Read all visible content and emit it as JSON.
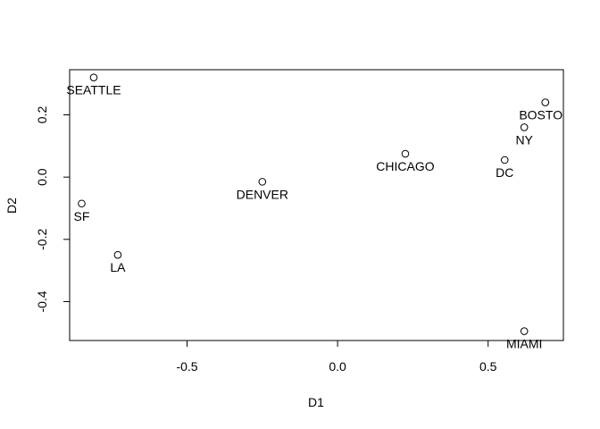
{
  "chart_data": {
    "type": "scatter",
    "title": "",
    "xlabel": "D1",
    "ylabel": "D2",
    "xlim": [
      -0.89,
      0.75
    ],
    "ylim": [
      -0.525,
      0.345
    ],
    "x_ticks": [
      -0.5,
      0.0,
      0.5
    ],
    "x_tick_labels": [
      "-0.5",
      "0.0",
      "0.5"
    ],
    "y_ticks": [
      -0.4,
      -0.2,
      0.0,
      0.2
    ],
    "y_tick_labels": [
      "-0.4",
      "-0.2",
      "0.0",
      "0.2"
    ],
    "grid": false,
    "points": [
      {
        "label": "SEATTLE",
        "x": -0.81,
        "y": 0.32
      },
      {
        "label": "SF",
        "x": -0.85,
        "y": -0.085
      },
      {
        "label": "LA",
        "x": -0.73,
        "y": -0.25
      },
      {
        "label": "DENVER",
        "x": -0.25,
        "y": -0.015
      },
      {
        "label": "CHICAGO",
        "x": 0.225,
        "y": 0.075
      },
      {
        "label": "DC",
        "x": 0.555,
        "y": 0.055
      },
      {
        "label": "NY",
        "x": 0.62,
        "y": 0.16
      },
      {
        "label": "BOSTON",
        "x": 0.69,
        "y": 0.24
      },
      {
        "label": "MIAMI",
        "x": 0.62,
        "y": -0.495
      }
    ]
  }
}
